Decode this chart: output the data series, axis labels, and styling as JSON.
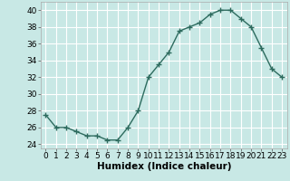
{
  "x": [
    0,
    1,
    2,
    3,
    4,
    5,
    6,
    7,
    8,
    9,
    10,
    11,
    12,
    13,
    14,
    15,
    16,
    17,
    18,
    19,
    20,
    21,
    22,
    23
  ],
  "y": [
    27.5,
    26,
    26,
    25.5,
    25,
    25,
    24.5,
    24.5,
    26,
    28,
    32,
    33.5,
    35,
    37.5,
    38,
    38.5,
    39.5,
    40,
    40,
    39,
    38,
    35.5,
    33,
    32
  ],
  "line_color": "#2d6b5e",
  "marker": "+",
  "marker_size": 4,
  "marker_linewidth": 1.0,
  "bg_color": "#c8e8e5",
  "grid_color": "#ffffff",
  "xlabel": "Humidex (Indice chaleur)",
  "xlim": [
    -0.5,
    23.5
  ],
  "ylim": [
    23.5,
    41
  ],
  "yticks": [
    24,
    26,
    28,
    30,
    32,
    34,
    36,
    38,
    40
  ],
  "xticks": [
    0,
    1,
    2,
    3,
    4,
    5,
    6,
    7,
    8,
    9,
    10,
    11,
    12,
    13,
    14,
    15,
    16,
    17,
    18,
    19,
    20,
    21,
    22,
    23
  ],
  "tick_fontsize": 6.5,
  "label_fontsize": 7.5,
  "linewidth": 1.0
}
